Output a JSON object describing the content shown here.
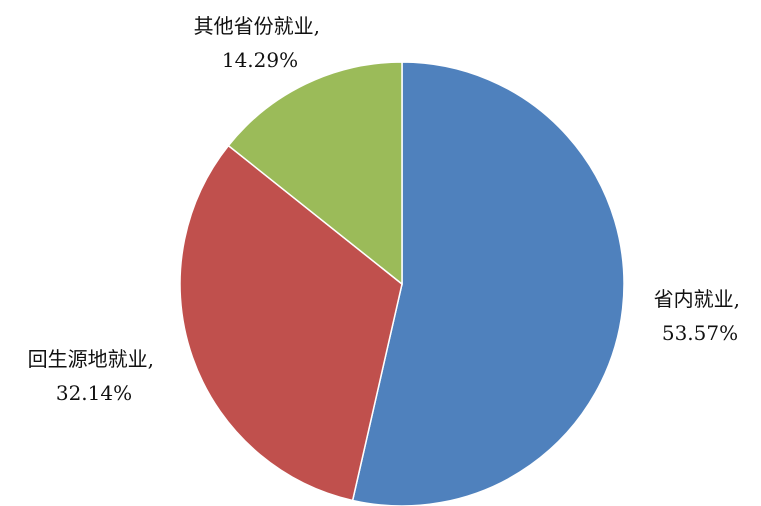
{
  "chart_data": {
    "type": "pie",
    "title": "",
    "categories": [
      "省内就业",
      "回生源地就业",
      "其他省份就业"
    ],
    "values": [
      53.57,
      32.14,
      14.29
    ],
    "unit": "%",
    "colors": [
      "#4F81BD",
      "#C0504D",
      "#9BBB59"
    ],
    "labels": [
      {
        "name": "省内就业,",
        "pct": "53.57%"
      },
      {
        "name": "回生源地就业,",
        "pct": "32.14%"
      },
      {
        "name": "其他省份就业,",
        "pct": "14.29%"
      }
    ],
    "start_angle_deg": 0,
    "direction": "clockwise",
    "legend": "none"
  }
}
